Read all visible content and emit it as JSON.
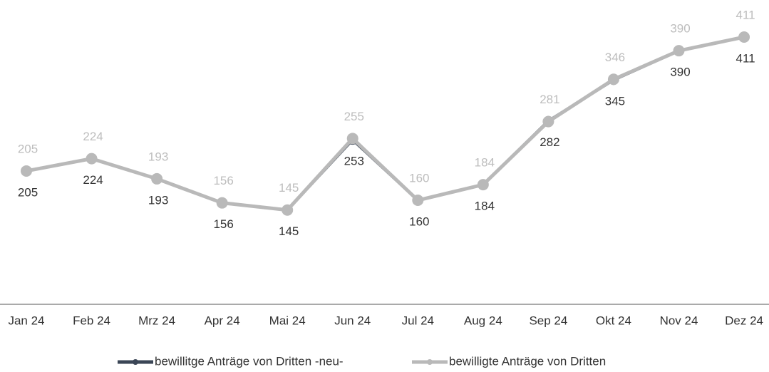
{
  "chart_data": {
    "type": "line",
    "categories": [
      "Jan 24",
      "Feb 24",
      "Mrz 24",
      "Apr 24",
      "Mai 24",
      "Jun 24",
      "Jul 24",
      "Aug 24",
      "Sep 24",
      "Okt 24",
      "Nov 24",
      "Dez 24"
    ],
    "series": [
      {
        "name": "bewillitge Anträge von Dritten -neu-",
        "color": "#3b4656",
        "values": [
          205,
          224,
          193,
          156,
          145,
          253,
          160,
          184,
          282,
          345,
          390,
          411
        ]
      },
      {
        "name": "bewilligte Anträge von Dritten",
        "color": "#b9b9b9",
        "values": [
          205,
          224,
          193,
          156,
          145,
          255,
          160,
          184,
          281,
          346,
          390,
          411
        ]
      }
    ],
    "ylim": [
      0,
      468
    ],
    "legend": "bottom"
  }
}
